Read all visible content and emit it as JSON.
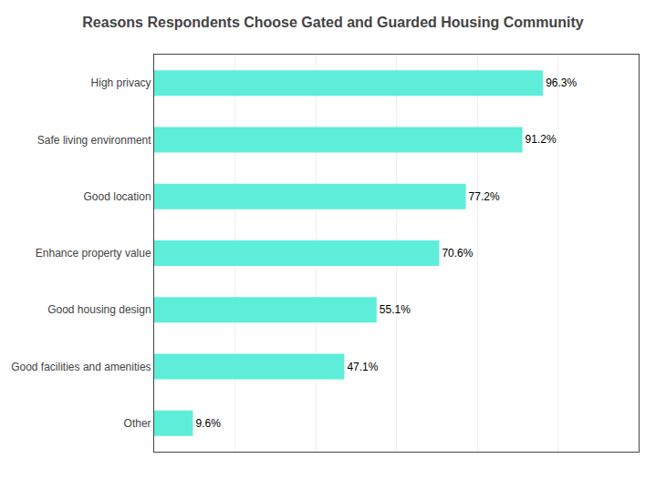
{
  "chart_data": {
    "type": "bar",
    "orientation": "horizontal",
    "title": "Reasons Respondents Choose Gated and Guarded Housing Community",
    "categories": [
      "Other",
      "Good facilities and amenities",
      "Good housing design",
      "Enhance property value",
      "Good location",
      "Safe living environment",
      "High privacy"
    ],
    "values": [
      9.6,
      47.1,
      55.1,
      70.6,
      77.2,
      91.2,
      96.3
    ],
    "value_labels": [
      "9.6%",
      "47.1%",
      "55.1%",
      "70.6%",
      "77.2%",
      "91.2%",
      "96.3%"
    ],
    "data_labels": true,
    "color": "#5DEDD9",
    "xlim": [
      0,
      120
    ],
    "xticks": [
      20,
      40,
      60,
      80,
      100,
      120
    ],
    "grid": true,
    "tick_labels": "y"
  }
}
